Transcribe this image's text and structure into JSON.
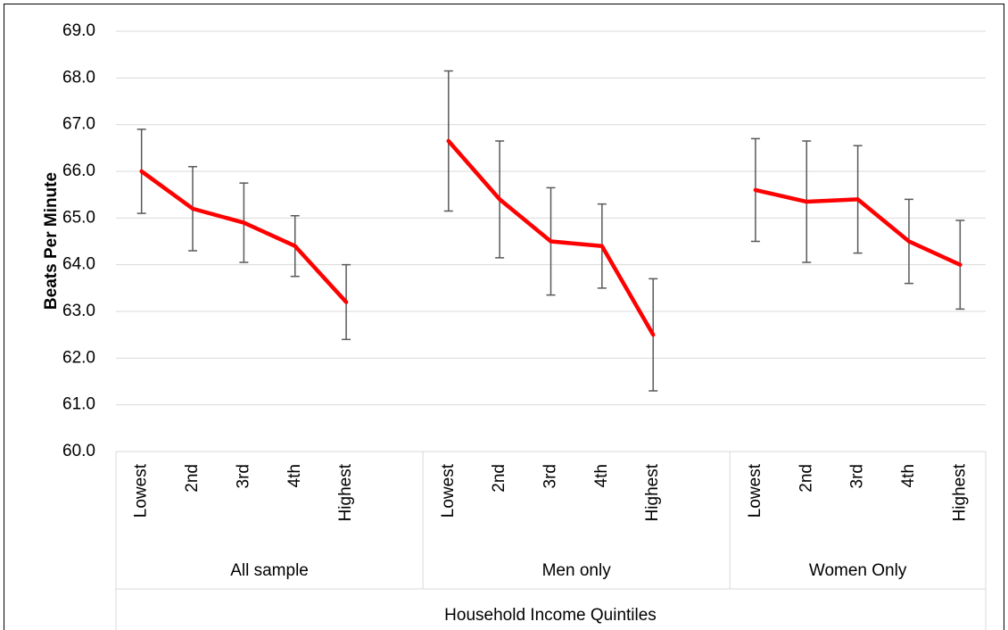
{
  "chart_data": {
    "type": "line",
    "y_label": "Beats Per Minute",
    "x_label": "Household Income Quintiles",
    "categories": [
      "Lowest",
      "2nd",
      "3rd",
      "4th",
      "Highest",
      null,
      "Lowest",
      "2nd",
      "3rd",
      "4th",
      "Highest",
      null,
      "Lowest",
      "2nd",
      "3rd",
      "4th",
      "Highest"
    ],
    "groups": [
      {
        "name": "All sample",
        "range": [
          0,
          5
        ]
      },
      {
        "name": "Men only",
        "range": [
          6,
          11
        ]
      },
      {
        "name": "Women Only",
        "range": [
          12,
          16
        ]
      }
    ],
    "series": [
      {
        "name": "Beats Per Minute",
        "color": "#ff0000",
        "error_color": "#595959",
        "values": [
          66.0,
          65.2,
          64.9,
          64.4,
          63.2,
          null,
          66.65,
          65.4,
          64.5,
          64.4,
          62.5,
          null,
          65.6,
          65.35,
          65.4,
          64.5,
          64.0
        ],
        "errors": [
          0.9,
          0.9,
          0.85,
          0.65,
          0.8,
          null,
          1.5,
          1.25,
          1.15,
          0.9,
          1.2,
          null,
          1.1,
          1.3,
          1.15,
          0.9,
          0.95
        ]
      }
    ],
    "ylim": [
      60,
      69
    ],
    "yticks": [
      {
        "value": 60,
        "label": "60.0"
      },
      {
        "value": 61,
        "label": "61.0"
      },
      {
        "value": 62,
        "label": "62.0"
      },
      {
        "value": 63,
        "label": "63.0"
      },
      {
        "value": 64,
        "label": "64.0"
      },
      {
        "value": 65,
        "label": "65.0"
      },
      {
        "value": 66,
        "label": "66.0"
      },
      {
        "value": 67,
        "label": "67.0"
      },
      {
        "value": 68,
        "label": "68.0"
      },
      {
        "value": 69,
        "label": "69.0"
      }
    ],
    "grid": true
  }
}
